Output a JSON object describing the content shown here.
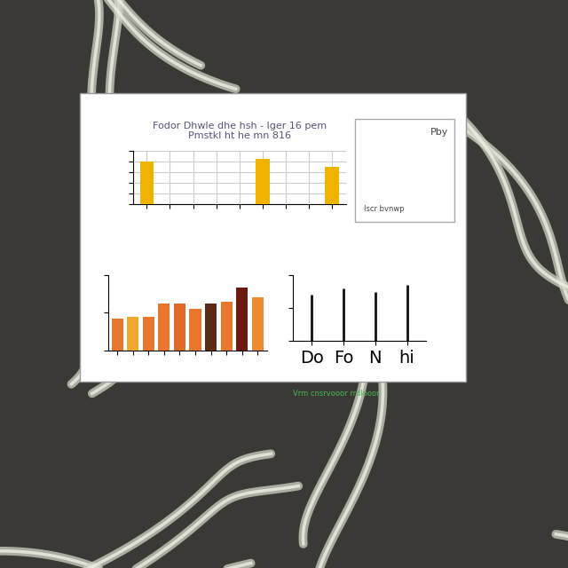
{
  "chart_data": [
    {
      "type": "bar",
      "title": "Fodor Dhwle dhe hsh - lger 16 pem\nPmstkl ht he mn 816",
      "categories": [
        null,
        null,
        null,
        null,
        null,
        null,
        null,
        null,
        null
      ],
      "values": [
        80,
        null,
        null,
        null,
        null,
        85,
        null,
        null,
        70
      ],
      "color": "#f0b400",
      "ylim": [
        0,
        100
      ],
      "yticks": [
        0,
        20,
        40,
        60,
        80,
        100
      ],
      "grid": true,
      "tick_labels": false,
      "annotations": [
        "Pby",
        "Iscr bvnwp"
      ]
    },
    {
      "type": "bar",
      "categories": [
        null,
        null,
        null,
        null,
        null,
        null,
        null,
        null,
        null,
        null
      ],
      "values": [
        42,
        45,
        45,
        62,
        62,
        55,
        62,
        65,
        83,
        70
      ],
      "colors": [
        "#e8762c",
        "#f0a830",
        "#e8762c",
        "#e8762c",
        "#e06a28",
        "#e8762c",
        "#5a2a1a",
        "#e8762c",
        "#6b1a10",
        "#f08a30"
      ],
      "ylim": [
        0,
        100
      ],
      "yticks": [
        0,
        50,
        100
      ],
      "grid": false,
      "tick_labels": false
    },
    {
      "type": "stem",
      "categories": [
        "Do",
        "Fo",
        "N",
        "hi"
      ],
      "values": [
        70,
        80,
        75,
        85
      ],
      "color": "#111111",
      "ylim": [
        0,
        100
      ],
      "yticks": [
        0,
        50,
        100
      ],
      "grid": false,
      "tick_labels": "x",
      "annotations": [
        "Vrm cnsrvooor rrdlooor"
      ]
    }
  ]
}
